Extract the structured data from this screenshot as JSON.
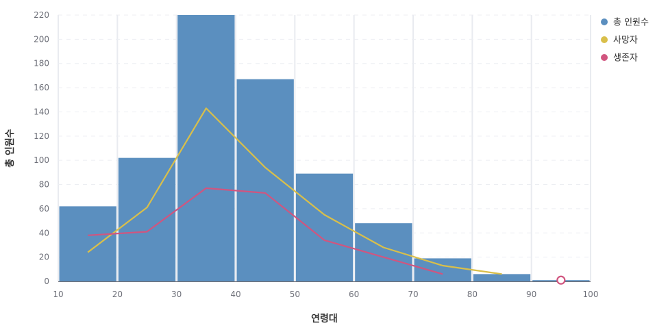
{
  "chart_data": {
    "type": "bar",
    "xlabel": "연령대",
    "ylabel": "총 인원수",
    "xlim": [
      10,
      100
    ],
    "ylim": [
      0,
      220
    ],
    "x_ticks": [
      "10",
      "20",
      "30",
      "40",
      "50",
      "60",
      "70",
      "80",
      "90",
      "100"
    ],
    "y_ticks": [
      "0",
      "20",
      "40",
      "60",
      "80",
      "100",
      "120",
      "140",
      "160",
      "180",
      "200",
      "220"
    ],
    "grid": true,
    "legend_position": "top-right",
    "bars": {
      "name": "총 인원수",
      "color": "#5b8fbf",
      "bins": [
        [
          10,
          20
        ],
        [
          20,
          30
        ],
        [
          30,
          40
        ],
        [
          40,
          50
        ],
        [
          50,
          60
        ],
        [
          60,
          70
        ],
        [
          70,
          80
        ],
        [
          80,
          90
        ],
        [
          90,
          100
        ]
      ],
      "values": [
        62,
        102,
        220,
        167,
        89,
        48,
        19,
        6,
        1
      ]
    },
    "series": [
      {
        "name": "사망자",
        "type": "line",
        "color": "#d9bf4a",
        "x": [
          15,
          25,
          35,
          45,
          55,
          65,
          75,
          85
        ],
        "values": [
          24,
          61,
          143,
          94,
          55,
          28,
          13,
          6
        ]
      },
      {
        "name": "생존자",
        "type": "line",
        "color": "#d1557f",
        "x": [
          15,
          25,
          35,
          45,
          55,
          65,
          75,
          95
        ],
        "values": [
          38,
          41,
          77,
          73,
          34,
          20,
          6,
          1
        ],
        "segment_break_after_index": 6
      }
    ]
  }
}
